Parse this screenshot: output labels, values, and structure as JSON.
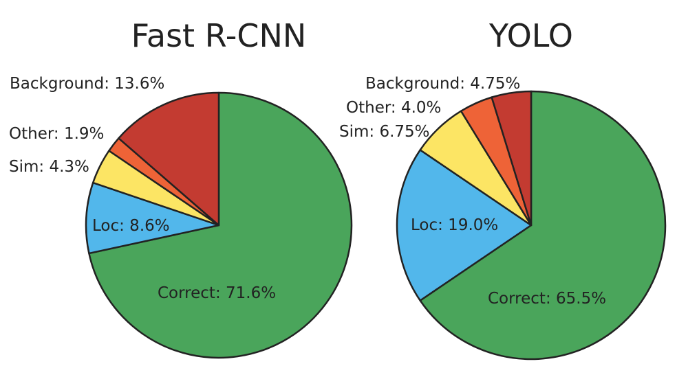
{
  "chart_data": [
    {
      "type": "pie",
      "title": "Fast R-CNN",
      "slices": [
        {
          "label": "Correct",
          "value": 71.6,
          "color": "#4aa55b"
        },
        {
          "label": "Loc",
          "value": 8.6,
          "color": "#52b7eb"
        },
        {
          "label": "Sim",
          "value": 4.3,
          "color": "#fce564"
        },
        {
          "label": "Other",
          "value": 1.9,
          "color": "#ee6337"
        },
        {
          "label": "Background",
          "value": 13.6,
          "color": "#c33b31"
        }
      ],
      "label_text": {
        "Correct": "Correct: 71.6%",
        "Loc": "Loc: 8.6%",
        "Sim": "Sim: 4.3%",
        "Other": "Other: 1.9%",
        "Background": "Background: 13.6%"
      }
    },
    {
      "type": "pie",
      "title": "YOLO",
      "slices": [
        {
          "label": "Correct",
          "value": 65.5,
          "color": "#4aa55b"
        },
        {
          "label": "Loc",
          "value": 19.0,
          "color": "#52b7eb"
        },
        {
          "label": "Sim",
          "value": 6.75,
          "color": "#fce564"
        },
        {
          "label": "Other",
          "value": 4.0,
          "color": "#ee6337"
        },
        {
          "label": "Background",
          "value": 4.75,
          "color": "#c33b31"
        }
      ],
      "label_text": {
        "Correct": "Correct: 65.5%",
        "Loc": "Loc: 19.0%",
        "Sim": "Sim: 6.75%",
        "Other": "Other: 4.0%",
        "Background": "Background: 4.75%"
      }
    }
  ]
}
